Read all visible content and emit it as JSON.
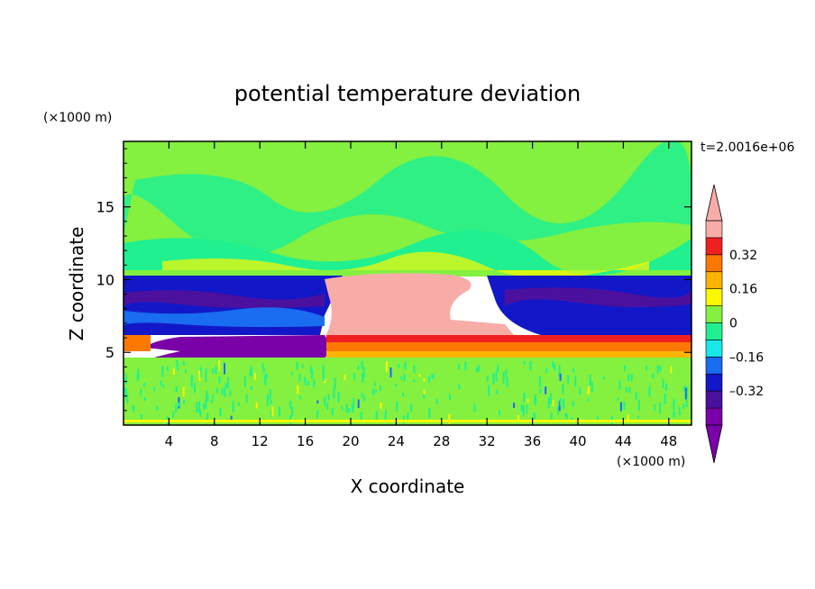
{
  "chart_data": {
    "type": "heatmap",
    "title": "potential temperature deviation",
    "xlabel": "X coordinate",
    "ylabel": "Z coordinate",
    "x_units": "(×1000 m)",
    "y_units": "(×1000 m)",
    "time_label": "t=2.0016e+06",
    "xlim": [
      0,
      50
    ],
    "ylim": [
      0,
      19.5
    ],
    "x_ticks": [
      4,
      8,
      12,
      16,
      20,
      24,
      28,
      32,
      36,
      40,
      44,
      48
    ],
    "y_ticks": [
      5,
      10,
      15
    ],
    "colorbar": {
      "levels": [
        -0.48,
        -0.4,
        -0.32,
        -0.24,
        -0.16,
        -0.08,
        0,
        0.08,
        0.16,
        0.24,
        0.32,
        0.4
      ],
      "tick_labels": [
        "0.32",
        "0.16",
        "0",
        "–0.16",
        "–0.32"
      ],
      "tick_values": [
        0.32,
        0.16,
        0,
        -0.16,
        -0.32
      ],
      "colors": [
        "#7a00a8",
        "#4b109e",
        "#1218c8",
        "#1a6cf0",
        "#18e8e8",
        "#20f090",
        "#84f040",
        "#fcf800",
        "#fcb400",
        "#fc7800",
        "#f02020",
        "#f8aca8"
      ],
      "over_color": "#f8aca8",
      "under_color": "#7a00a8"
    },
    "regions": [
      {
        "x": [
          0,
          50
        ],
        "z": [
          10.5,
          19.5
        ],
        "value": 0.02,
        "note": "upper layer, mostly near zero"
      },
      {
        "x": [
          0,
          18
        ],
        "z": [
          6.5,
          10.5
        ],
        "value": -0.36,
        "note": "cold anomaly left"
      },
      {
        "x": [
          35,
          50
        ],
        "z": [
          6.5,
          10.5
        ],
        "value": -0.36,
        "note": "cold anomaly right"
      },
      {
        "x": [
          18,
          31
        ],
        "z": [
          6.2,
          10.5
        ],
        "value": 0.45,
        "note": "warm anomaly center"
      },
      {
        "x": [
          1,
          18
        ],
        "z": [
          4.5,
          6.5
        ],
        "value": -0.45,
        "note": "cold anomaly lower left"
      },
      {
        "x": [
          18,
          50
        ],
        "z": [
          4.8,
          6.2
        ],
        "value": 0.3,
        "note": "warm band"
      },
      {
        "x": [
          0,
          50
        ],
        "z": [
          0,
          4.5
        ],
        "value": 0.0,
        "note": "near-zero noisy lower layer"
      }
    ]
  }
}
